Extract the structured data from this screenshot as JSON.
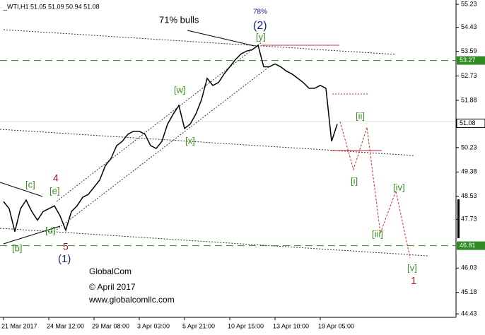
{
  "chart_data": {
    "type": "line",
    "title": "_WTI,H1  51.05 51.09 50.94 51.08",
    "color": "#000000",
    "categories": [
      "21 Mar 2017",
      null,
      null,
      null,
      null,
      null,
      null,
      null,
      "24 Mar 12:00",
      null,
      null,
      null,
      null,
      null,
      null,
      null,
      "29 Mar 08:00",
      null,
      null,
      null,
      null,
      null,
      null,
      null,
      "3 Apr 03:00",
      null,
      null,
      null,
      null,
      null,
      null,
      null,
      "5 Apr 21:00",
      null,
      null,
      null,
      null,
      null,
      null,
      null,
      "10 Apr 15:00",
      null,
      null,
      null,
      null,
      null,
      null,
      null,
      "13 Apr 10:00",
      null,
      null,
      null,
      null,
      null,
      null,
      null,
      "19 Apr 05:00",
      null,
      null,
      null
    ],
    "values": [
      48.35,
      48.1,
      47.3,
      48.1,
      48.4,
      48.0,
      47.7,
      48.0,
      48.1,
      48.2,
      47.85,
      47.35,
      48.0,
      48.2,
      48.5,
      48.6,
      48.85,
      49.1,
      49.6,
      49.85,
      50.3,
      50.45,
      50.7,
      50.8,
      50.8,
      50.7,
      50.3,
      50.2,
      50.45,
      51.05,
      51.4,
      51.7,
      50.9,
      51.05,
      51.4,
      51.9,
      52.65,
      52.4,
      52.5,
      52.8,
      53.05,
      53.3,
      53.5,
      53.6,
      53.65,
      53.8,
      53.05,
      53.05,
      53.15,
      53.05,
      52.9,
      52.8,
      52.65,
      52.5,
      52.3,
      52.3,
      52.4,
      52.3,
      50.45,
      51.05
    ],
    "ylim": [
      44.31,
      55.38
    ],
    "yticks": [
      55.23,
      54.43,
      53.59,
      52.73,
      51.88,
      50.23,
      49.38,
      48.53,
      47.73,
      46.03,
      45.18,
      44.43
    ],
    "levels": [
      {
        "value": 53.27,
        "color": "#2e8b22"
      },
      {
        "value": 46.81,
        "color": "#2e8b22"
      }
    ],
    "current": 51.08,
    "annotations": [
      {
        "text": "71% bulls",
        "color": "#000000"
      },
      {
        "text": "78%",
        "color": "#1a237e"
      },
      {
        "text": "(2)",
        "color": "#1a237e"
      },
      {
        "text": "[y]",
        "color": "#3a8f1e"
      },
      {
        "text": "[w]",
        "color": "#3a8f1e"
      },
      {
        "text": "[x]",
        "color": "#3a8f1e"
      },
      {
        "text": "[c]",
        "color": "#3a8f1e"
      },
      {
        "text": "[e]",
        "color": "#3a8f1e"
      },
      {
        "text": "4",
        "color": "#8b1a1a"
      },
      {
        "text": "[d]",
        "color": "#3a8f1e"
      },
      {
        "text": "[b]",
        "color": "#3a8f1e"
      },
      {
        "text": "5",
        "color": "#8b1a1a"
      },
      {
        "text": "(1)",
        "color": "#1a237e"
      },
      {
        "text": "[ii]",
        "color": "#3a8f1e"
      },
      {
        "text": "[i]",
        "color": "#3a8f1e"
      },
      {
        "text": "[iv]",
        "color": "#3a8f1e"
      },
      {
        "text": "[iii]",
        "color": "#3a8f1e"
      },
      {
        "text": "[v]",
        "color": "#3a8f1e"
      },
      {
        "text": "1",
        "color": "#b71c1c"
      },
      {
        "text": "GlobalCom",
        "color": "#000000"
      },
      {
        "text": "© April 2017",
        "color": "#000000"
      },
      {
        "text": "www.globalcomllc.com",
        "color": "#000000"
      }
    ]
  }
}
